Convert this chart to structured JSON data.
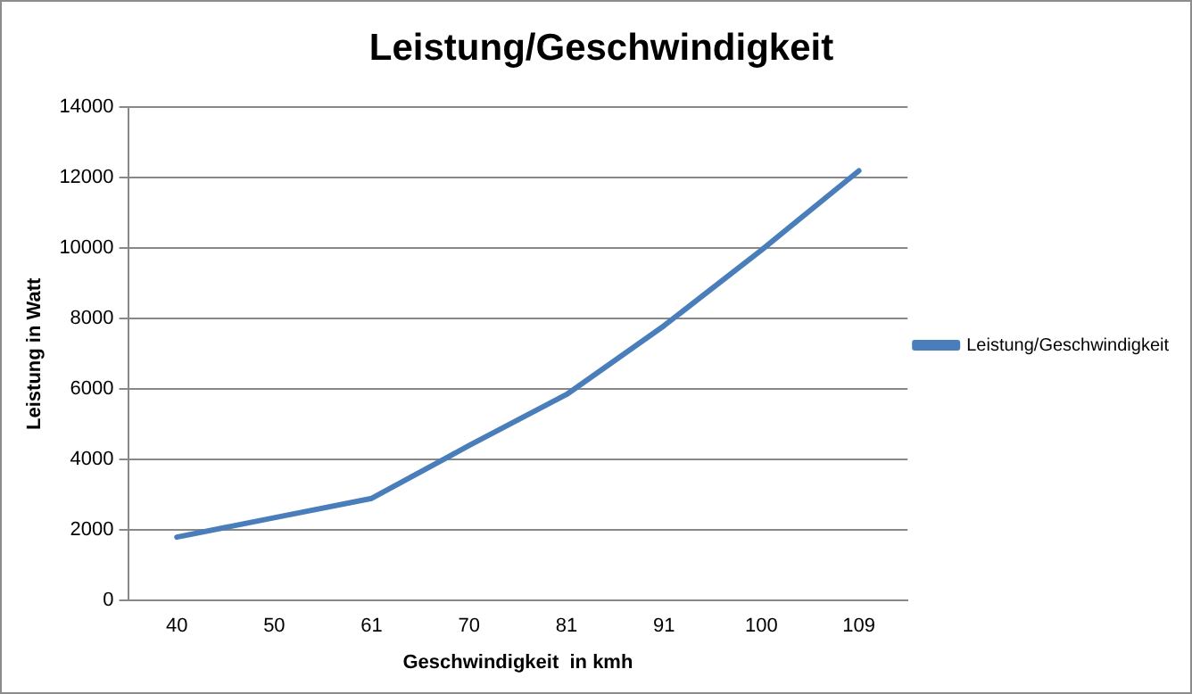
{
  "chart_data": {
    "type": "line",
    "title": "Leistung/Geschwindigkeit",
    "xlabel": "Geschwindigkeit  in kmh",
    "ylabel": "Leistung in Watt",
    "categories": [
      "40",
      "50",
      "61",
      "70",
      "81",
      "91",
      "100",
      "109"
    ],
    "series": [
      {
        "name": "Leistung/Geschwindigkeit",
        "color": "#4a7ebb",
        "values": [
          1800,
          2350,
          2900,
          4400,
          5850,
          7800,
          9950,
          12200
        ]
      }
    ],
    "ylim": [
      0,
      14000
    ],
    "yticks": [
      0,
      2000,
      4000,
      6000,
      8000,
      10000,
      12000,
      14000
    ],
    "grid": "y",
    "legend": "right",
    "marker": "none",
    "line_style": "solid"
  }
}
